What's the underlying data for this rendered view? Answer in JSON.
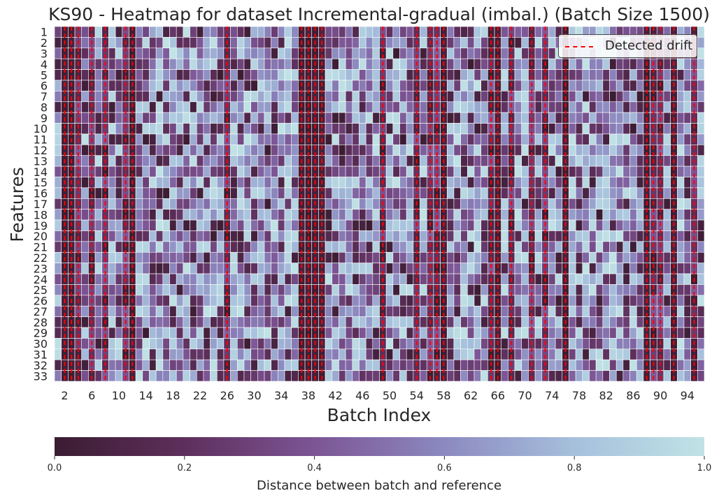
{
  "chart_data": {
    "type": "heatmap",
    "title": "KS90 - Heatmap for dataset Incremental-gradual (imbal.) (Batch Size 1500)",
    "xlabel": "Batch Index",
    "ylabel": "Features",
    "n_batches": 96,
    "features": [
      1,
      2,
      3,
      4,
      5,
      6,
      7,
      8,
      9,
      10,
      11,
      12,
      13,
      14,
      15,
      16,
      17,
      18,
      19,
      20,
      21,
      22,
      23,
      24,
      25,
      26,
      27,
      28,
      29,
      30,
      31,
      32,
      33
    ],
    "x_ticks": [
      2,
      6,
      10,
      14,
      18,
      22,
      26,
      30,
      34,
      38,
      42,
      46,
      50,
      54,
      58,
      62,
      66,
      70,
      74,
      78,
      82,
      86,
      90,
      94
    ],
    "drift_batches": [
      2,
      3,
      4,
      6,
      8,
      11,
      12,
      26,
      37,
      38,
      39,
      40,
      49,
      54,
      56,
      57,
      58,
      65,
      66,
      68,
      71,
      73,
      76,
      88,
      89,
      90,
      92,
      95
    ],
    "dark_columns": [
      2,
      3,
      12,
      37,
      38,
      39,
      40,
      58,
      66,
      76,
      88,
      92
    ],
    "legend": {
      "label": "Detected drift",
      "position": "upper right"
    },
    "colorbar": {
      "label": "Distance between batch and reference",
      "range": [
        0.0,
        1.0
      ],
      "ticks": [
        "0.0",
        "0.2",
        "0.4",
        "0.6",
        "0.8",
        "1.0"
      ],
      "colormap": [
        "#3b1c32",
        "#5e2f5c",
        "#7c5595",
        "#8c89c0",
        "#a6c0dc",
        "#c0e3e5"
      ]
    },
    "drift_line_color": "#ff0000"
  }
}
